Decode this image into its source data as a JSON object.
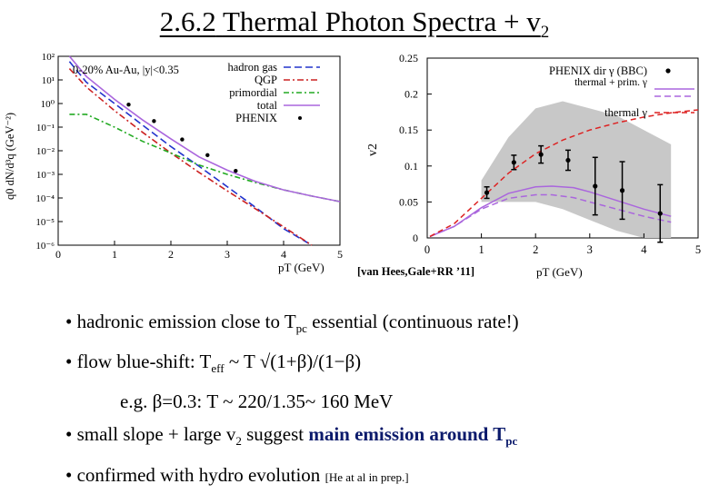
{
  "slide": {
    "title_num": "2.6.2",
    "title_text": "Thermal Photon Spectra + v",
    "title_sub": "2",
    "citation": "[van Hees,Gale+RR ’11]"
  },
  "bullets": {
    "b1_pre": "• hadronic emission close to T",
    "b1_sub": "pc",
    "b1_post": " essential (continuous rate!)",
    "b2_pre": "• flow blue-shift: T",
    "b2_sub": "eff",
    "b2_post": " ~ T √(1+β)/(1−β)",
    "b3": "e.g. β=0.3: T ~ 220/1.35~ 160 MeV",
    "b4_pre": "• small slope + large v",
    "b4_sub": "2",
    "b4_mid": " suggest ",
    "b4_bold": "main emission around T",
    "b4_bsub": "pc",
    "b5": "• confirmed with hydro evolution",
    "b5_ref": "[He at al in prep.]"
  },
  "chart_data": [
    {
      "type": "line",
      "annotation": "0-20% Au-Au, |y|<0.35",
      "xlabel": "pT (GeV)",
      "ylabel": "q0 dN/d³q (GeV⁻²)",
      "xlim": [
        0,
        5
      ],
      "ylim_log10": [
        -6,
        2
      ],
      "log_y": true,
      "x_ticks": [
        "0",
        "1",
        "2",
        "3",
        "4",
        "5"
      ],
      "y_ticks": [
        "10²",
        "10¹",
        "10⁰",
        "10⁻¹",
        "10⁻²",
        "10⁻³",
        "10⁻⁴",
        "10⁻⁵",
        "10⁻⁶"
      ],
      "legend_position": "top-right",
      "series": [
        {
          "name": "hadron gas",
          "color": "#2233cc",
          "dash": "8,4",
          "x": [
            0.2,
            0.5,
            1.0,
            1.5,
            2.0,
            2.5,
            3.0,
            3.5,
            4.0,
            4.5
          ],
          "y": [
            60,
            8,
            1.0,
            0.12,
            0.015,
            0.0022,
            0.0003,
            4e-05,
            5e-06,
            6e-07
          ]
        },
        {
          "name": "QGP",
          "color": "#cc2222",
          "dash": "7,3,2,3",
          "x": [
            0.2,
            0.5,
            1.0,
            1.5,
            2.0,
            2.5,
            3.0,
            3.5,
            4.0,
            4.5
          ],
          "y": [
            30,
            5,
            0.5,
            0.06,
            0.008,
            0.0012,
            0.0002,
            3.5e-05,
            6e-06,
            1e-06
          ]
        },
        {
          "name": "primordial",
          "color": "#22aa22",
          "dash": "6,3,2,3",
          "x": [
            0.2,
            0.5,
            1.0,
            1.5,
            2.0,
            2.5,
            3.0,
            3.5,
            4.0,
            4.5,
            5.0
          ],
          "y": [
            0.35,
            0.35,
            0.1,
            0.025,
            0.008,
            0.0025,
            0.001,
            0.00045,
            0.00022,
            0.00012,
            7e-05
          ]
        },
        {
          "name": "total",
          "color": "#aa66dd",
          "dash": "",
          "x": [
            0.2,
            0.5,
            1.0,
            1.5,
            2.0,
            2.5,
            3.0,
            3.5,
            4.0,
            4.5,
            5.0
          ],
          "y": [
            100,
            14,
            1.5,
            0.2,
            0.032,
            0.0055,
            0.0015,
            0.0005,
            0.00022,
            0.00012,
            7e-05
          ]
        },
        {
          "name": "PHENIX",
          "color": "#000000",
          "marker": "point",
          "x": [
            1.25,
            1.7,
            2.2,
            2.65,
            3.15
          ],
          "y": [
            0.9,
            0.18,
            0.03,
            0.0065,
            0.0014
          ]
        }
      ]
    },
    {
      "type": "line",
      "xlabel": "pT (GeV)",
      "ylabel": "v2",
      "xlim": [
        0,
        5
      ],
      "ylim": [
        0,
        0.25
      ],
      "x_ticks": [
        "0",
        "1",
        "2",
        "3",
        "4",
        "5"
      ],
      "y_ticks": [
        "0",
        "0.05",
        "0.1",
        "0.15",
        "0.2",
        "0.25"
      ],
      "legend_position": "top-right",
      "band": {
        "x": [
          1.0,
          1.5,
          2.0,
          2.5,
          3.0,
          3.5,
          4.0,
          4.5
        ],
        "low": [
          0.05,
          0.05,
          0.05,
          0.04,
          0.025,
          0.01,
          0.0,
          0.0
        ],
        "high": [
          0.08,
          0.14,
          0.18,
          0.19,
          0.18,
          0.17,
          0.15,
          0.13
        ]
      },
      "series": [
        {
          "name": "PHENIX dir γ (BBC)",
          "color": "#000000",
          "marker": "point",
          "x": [
            1.1,
            1.6,
            2.1,
            2.6,
            3.1,
            3.6,
            4.3
          ],
          "y": [
            0.063,
            0.105,
            0.116,
            0.108,
            0.072,
            0.066,
            0.034
          ],
          "err": [
            0.008,
            0.01,
            0.012,
            0.014,
            0.04,
            0.04,
            0.04
          ]
        },
        {
          "name": "thermal + prim. γ",
          "color": "#aa66dd",
          "dash": "",
          "x": [
            0.05,
            0.5,
            1.0,
            1.5,
            2.0,
            2.3,
            2.7,
            3.0,
            3.5,
            4.0,
            4.5
          ],
          "y": [
            0.002,
            0.016,
            0.042,
            0.062,
            0.071,
            0.072,
            0.07,
            0.064,
            0.052,
            0.04,
            0.03
          ]
        },
        {
          "name": "thermal + prim. γ (dashed)",
          "color": "#aa66dd",
          "dash": "7,4",
          "x": [
            0.05,
            0.5,
            1.0,
            1.5,
            2.0,
            2.3,
            2.7,
            3.0,
            3.5,
            4.0,
            4.5
          ],
          "y": [
            0.002,
            0.016,
            0.04,
            0.055,
            0.06,
            0.06,
            0.056,
            0.05,
            0.04,
            0.03,
            0.022
          ]
        },
        {
          "name": "thermal γ",
          "color": "#dd2222",
          "dash": "6,4",
          "x": [
            0.05,
            0.5,
            1.0,
            1.5,
            2.0,
            2.5,
            3.0,
            3.5,
            4.0,
            4.5,
            5.0
          ],
          "y": [
            0.002,
            0.02,
            0.055,
            0.09,
            0.117,
            0.136,
            0.15,
            0.16,
            0.168,
            0.174,
            0.178
          ]
        }
      ]
    }
  ]
}
